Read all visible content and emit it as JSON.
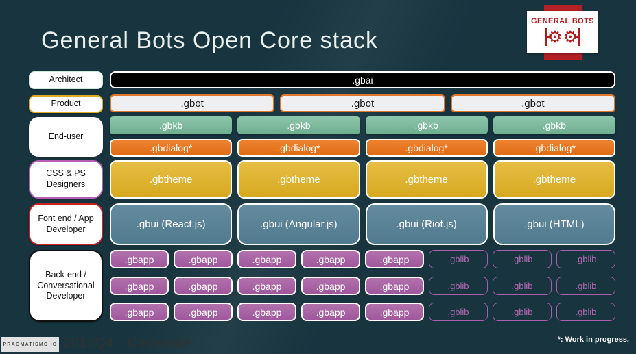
{
  "title": "General Bots Open Core stack",
  "logo": {
    "name": "GENERAL BOTS"
  },
  "labels": {
    "architect": "Architect",
    "product": "Product",
    "end_user": "End-user",
    "designers": "CSS & PS Designers",
    "frontend": "Font end / App Developer",
    "backend": "Back-end / Conversational Developer"
  },
  "rows": {
    "gbai": [
      ".gbai"
    ],
    "gbot": [
      ".gbot",
      ".gbot",
      ".gbot"
    ],
    "gbkb": [
      ".gbkb",
      ".gbkb",
      ".gbkb",
      ".gbkb"
    ],
    "gbdialog": [
      ".gbdialog*",
      ".gbdialog*",
      ".gbdialog*",
      ".gbdialog*"
    ],
    "gbtheme": [
      ".gbtheme",
      ".gbtheme",
      ".gbtheme",
      ".gbtheme"
    ],
    "gbui": [
      ".gbui (React.js)",
      ".gbui (Angular.js)",
      ".gbui (Riot.js)",
      ".gbui (HTML)"
    ],
    "backend_rows": [
      {
        "gbapp": [
          ".gbapp",
          ".gbapp",
          ".gbapp",
          ".gbapp",
          ".gbapp"
        ],
        "gblib": [
          ".gblib",
          ".gblib",
          ".gblib"
        ]
      },
      {
        "gbapp": [
          ".gbapp",
          ".gbapp",
          ".gbapp",
          ".gbapp",
          ".gbapp"
        ],
        "gblib": [
          ".gblib",
          ".gblib",
          ".gblib"
        ]
      },
      {
        "gbapp": [
          ".gbapp",
          ".gbapp",
          ".gbapp",
          ".gbapp",
          ".gbapp"
        ],
        "gblib": [
          ".gblib",
          ".gblib",
          ".gblib"
        ]
      }
    ]
  },
  "footer": {
    "brand": "PRAGMATISMO.IO",
    "caption": "2018Q4 - Corporate",
    "note": "*: Work in progress."
  },
  "colors": {
    "background_dark": "#17343f",
    "background_glow": "#3a6e63",
    "title_text": "#e9efec",
    "logo_red": "#b51a1b",
    "gbai_bg": "#000000",
    "gbot_bg": "#efeef0",
    "gbot_border": "#e0772b",
    "gbkb_bg": "#7fba9e",
    "gbdialog_bg": "#e87722",
    "gbtheme_bg": "#e0b232",
    "gbui_bg": "#5b8397",
    "gbapp_bg": "#a965a6",
    "gblib_border": "#a95fa9",
    "label_product_border": "#e3ac28",
    "label_designers_border": "#b75fb5",
    "label_frontend_border": "#cc2020",
    "label_backend_border": "#111111"
  }
}
